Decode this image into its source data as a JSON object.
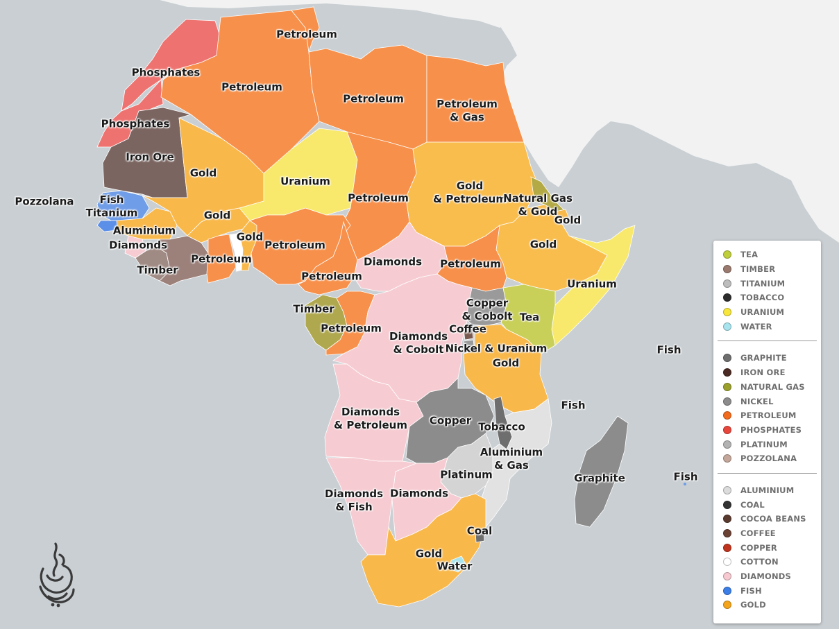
{
  "map": {
    "labels": [
      {
        "id": "phosphates-morocco",
        "text": "Phosphates"
      },
      {
        "id": "phosphates-wsahara",
        "text": "Phosphates"
      },
      {
        "id": "iron-ore-mauritania",
        "text": "Iron Ore"
      },
      {
        "id": "petroleum-tunisia",
        "text": "Petroleum"
      },
      {
        "id": "petroleum-algeria",
        "text": "Petroleum"
      },
      {
        "id": "petroleum-libya",
        "text": "Petroleum"
      },
      {
        "id": "petroleum-gas-egypt",
        "text": "Petroleum\n& Gas"
      },
      {
        "id": "gold-mali",
        "text": "Gold"
      },
      {
        "id": "uranium-niger",
        "text": "Uranium"
      },
      {
        "id": "petroleum-chad",
        "text": "Petroleum"
      },
      {
        "id": "gold-petroleum-sudan",
        "text": "Gold\n& Petroleum"
      },
      {
        "id": "natural-gas-gold-eritrea",
        "text": "Natural Gas\n& Gold"
      },
      {
        "id": "gold-djibouti",
        "text": "Gold"
      },
      {
        "id": "pozzolana-capeverde",
        "text": "Pozzolana"
      },
      {
        "id": "fish-titanium-senegal",
        "text": "Fish\nTitanium"
      },
      {
        "id": "gold-burkina",
        "text": "Gold"
      },
      {
        "id": "aluminium-guinea",
        "text": "Aluminium"
      },
      {
        "id": "diamonds-sierraleone",
        "text": "Diamonds"
      },
      {
        "id": "gold-ghana",
        "text": "Gold"
      },
      {
        "id": "petroleum-nigeria",
        "text": "Petroleum"
      },
      {
        "id": "timber-liberia",
        "text": "Timber"
      },
      {
        "id": "petroleum-ivorycoast",
        "text": "Petroleum"
      },
      {
        "id": "diamonds-car",
        "text": "Diamonds"
      },
      {
        "id": "petroleum-southsudan",
        "text": "Petroleum"
      },
      {
        "id": "gold-ethiopia",
        "text": "Gold"
      },
      {
        "id": "uranium-somalia",
        "text": "Uranium"
      },
      {
        "id": "petroleum-cameroon",
        "text": "Petroleum"
      },
      {
        "id": "timber-eqguinea",
        "text": "Timber"
      },
      {
        "id": "petroleum-congo",
        "text": "Petroleum"
      },
      {
        "id": "diamonds-cobolt-drc",
        "text": "Diamonds\n& Cobolt"
      },
      {
        "id": "copper-cobolt-uganda",
        "text": "Copper\n& Cobolt"
      },
      {
        "id": "tea-kenya",
        "text": "Tea"
      },
      {
        "id": "coffee-rwanda",
        "text": "Coffee"
      },
      {
        "id": "nickel-uranium-burundi",
        "text": "Nickel & Uranium"
      },
      {
        "id": "gold-tanzania",
        "text": "Gold"
      },
      {
        "id": "fish-seychelles",
        "text": "Fish"
      },
      {
        "id": "fish-comoros",
        "text": "Fish"
      },
      {
        "id": "diamonds-petroleum-angola",
        "text": "Diamonds\n& Petroleum"
      },
      {
        "id": "copper-zambia",
        "text": "Copper"
      },
      {
        "id": "tobacco-malawi",
        "text": "Tobacco"
      },
      {
        "id": "aluminium-gas-mozambique",
        "text": "Aluminium\n& Gas"
      },
      {
        "id": "platinum-zimbabwe",
        "text": "Platinum"
      },
      {
        "id": "graphite-madagascar",
        "text": "Graphite"
      },
      {
        "id": "fish-mauritius",
        "text": "Fish"
      },
      {
        "id": "diamonds-fish-namibia",
        "text": "Diamonds\n& Fish"
      },
      {
        "id": "diamonds-botswana",
        "text": "Diamonds"
      },
      {
        "id": "coal-swaziland",
        "text": "Coal"
      },
      {
        "id": "gold-southafrica",
        "text": "Gold"
      },
      {
        "id": "water-lesotho",
        "text": "Water"
      }
    ]
  },
  "legend": {
    "groups": [
      {
        "items": [
          {
            "label": "TEA",
            "color": "#bfcf3b"
          },
          {
            "label": "TIMBER",
            "color": "#9a7a6e"
          },
          {
            "label": "TITANIUM",
            "color": "#bdbdbd"
          },
          {
            "label": "TOBACCO",
            "color": "#2c2c2c"
          },
          {
            "label": "URANIUM",
            "color": "#f7e63c"
          },
          {
            "label": "WATER",
            "color": "#a8e4ee"
          }
        ]
      },
      {
        "items": [
          {
            "label": "GRAPHITE",
            "color": "#6e6e6e"
          },
          {
            "label": "IRON ORE",
            "color": "#4a2a22"
          },
          {
            "label": "NATURAL GAS",
            "color": "#9aa02a"
          },
          {
            "label": "NICKEL",
            "color": "#8c8c8c"
          },
          {
            "label": "PETROLEUM",
            "color": "#f26a1b"
          },
          {
            "label": "PHOSPHATES",
            "color": "#e8463c"
          },
          {
            "label": "PLATINUM",
            "color": "#b3b3b3"
          },
          {
            "label": "POZZOLANA",
            "color": "#c4a79a"
          }
        ]
      },
      {
        "items": [
          {
            "label": "ALUMINIUM",
            "color": "#dcdcdc"
          },
          {
            "label": "COAL",
            "color": "#333333"
          },
          {
            "label": "COCOA BEANS",
            "color": "#5a3a2e"
          },
          {
            "label": "COFFEE",
            "color": "#6b4234"
          },
          {
            "label": "COPPER",
            "color": "#c0341d"
          },
          {
            "label": "COTTON",
            "color": "#ffffff"
          },
          {
            "label": "DIAMONDS",
            "color": "#f7c9d0"
          },
          {
            "label": "FISH",
            "color": "#3b7ee8"
          },
          {
            "label": "GOLD",
            "color": "#f4a41a"
          }
        ]
      }
    ]
  }
}
